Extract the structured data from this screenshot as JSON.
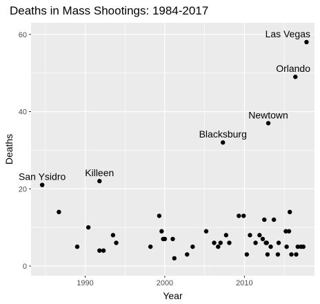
{
  "chart_data": {
    "type": "scatter",
    "title": "Deaths in Mass Shootings: 1984-2017",
    "xlabel": "Year",
    "ylabel": "Deaths",
    "xlim": [
      1983.2,
      2018.8
    ],
    "ylim": [
      -2.5,
      63
    ],
    "xticks": [
      1990,
      2000,
      2010
    ],
    "yticks": [
      0,
      20,
      40,
      60
    ],
    "grid": true,
    "colors": {
      "panel": "#ebebeb",
      "grid": "#ffffff",
      "point": "#000000",
      "tick_text": "#4d4d4d"
    },
    "points": [
      {
        "x": 1984.6,
        "y": 21
      },
      {
        "x": 1986.7,
        "y": 14
      },
      {
        "x": 1989.0,
        "y": 5
      },
      {
        "x": 1990.4,
        "y": 10
      },
      {
        "x": 1991.8,
        "y": 22
      },
      {
        "x": 1991.8,
        "y": 4
      },
      {
        "x": 1992.3,
        "y": 4
      },
      {
        "x": 1993.5,
        "y": 8
      },
      {
        "x": 1993.9,
        "y": 6
      },
      {
        "x": 1998.2,
        "y": 5
      },
      {
        "x": 1999.3,
        "y": 13
      },
      {
        "x": 1999.6,
        "y": 9
      },
      {
        "x": 1999.8,
        "y": 7
      },
      {
        "x": 2000.0,
        "y": 7
      },
      {
        "x": 2001.0,
        "y": 7
      },
      {
        "x": 2001.2,
        "y": 2
      },
      {
        "x": 2002.8,
        "y": 3
      },
      {
        "x": 2003.5,
        "y": 5
      },
      {
        "x": 2005.2,
        "y": 9
      },
      {
        "x": 2006.2,
        "y": 6
      },
      {
        "x": 2006.7,
        "y": 5
      },
      {
        "x": 2007.0,
        "y": 6
      },
      {
        "x": 2007.3,
        "y": 32
      },
      {
        "x": 2007.7,
        "y": 8
      },
      {
        "x": 2008.1,
        "y": 6
      },
      {
        "x": 2009.3,
        "y": 13
      },
      {
        "x": 2009.9,
        "y": 13
      },
      {
        "x": 2010.3,
        "y": 3
      },
      {
        "x": 2010.7,
        "y": 8
      },
      {
        "x": 2011.4,
        "y": 6
      },
      {
        "x": 2011.9,
        "y": 8
      },
      {
        "x": 2012.3,
        "y": 7
      },
      {
        "x": 2012.5,
        "y": 12
      },
      {
        "x": 2012.7,
        "y": 6
      },
      {
        "x": 2012.8,
        "y": 6
      },
      {
        "x": 2012.9,
        "y": 3
      },
      {
        "x": 2013.0,
        "y": 37
      },
      {
        "x": 2013.3,
        "y": 5
      },
      {
        "x": 2013.7,
        "y": 12
      },
      {
        "x": 2014.2,
        "y": 3
      },
      {
        "x": 2014.3,
        "y": 6
      },
      {
        "x": 2015.2,
        "y": 9
      },
      {
        "x": 2015.3,
        "y": 5
      },
      {
        "x": 2015.6,
        "y": 9
      },
      {
        "x": 2015.7,
        "y": 14
      },
      {
        "x": 2015.9,
        "y": 3
      },
      {
        "x": 2016.4,
        "y": 49
      },
      {
        "x": 2016.5,
        "y": 3
      },
      {
        "x": 2016.7,
        "y": 5
      },
      {
        "x": 2017.1,
        "y": 5
      },
      {
        "x": 2017.4,
        "y": 5
      },
      {
        "x": 2017.8,
        "y": 58
      }
    ],
    "annotations": [
      {
        "text": "San Ysidro",
        "x": 1984.6,
        "y": 21
      },
      {
        "text": "Killeen",
        "x": 1991.8,
        "y": 22
      },
      {
        "text": "Blacksburg",
        "x": 2007.3,
        "y": 32
      },
      {
        "text": "Newtown",
        "x": 2013.0,
        "y": 37
      },
      {
        "text": "Orlando",
        "x": 2016.4,
        "y": 49
      },
      {
        "text": "Las Vegas",
        "x": 2017.8,
        "y": 58
      }
    ]
  }
}
